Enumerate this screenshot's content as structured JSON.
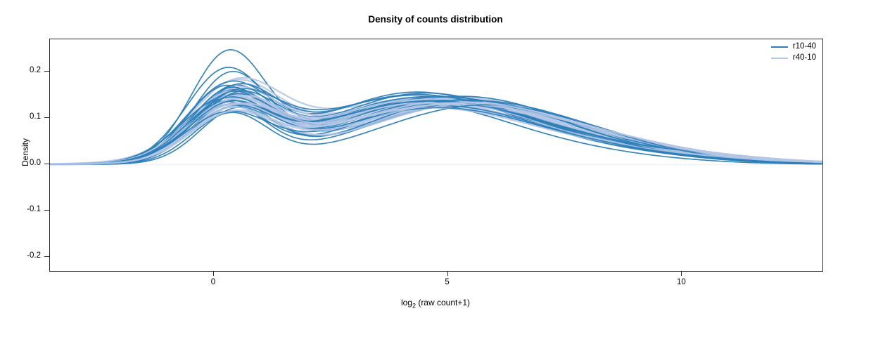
{
  "chart_data": {
    "type": "line",
    "title": "Density of counts distribution",
    "ylabel": "Density",
    "xlabel": {
      "prefix": "log",
      "sub": "2",
      "suffix": " (raw count+1)"
    },
    "xlim": [
      -3.5,
      13.0
    ],
    "ylim": [
      -0.23,
      0.27
    ],
    "xticks": [
      {
        "v": 0,
        "label": "0"
      },
      {
        "v": 5,
        "label": "5"
      },
      {
        "v": 10,
        "label": "10"
      }
    ],
    "yticks": [
      {
        "v": -0.2,
        "label": "-0.2"
      },
      {
        "v": -0.1,
        "label": "-0.1"
      },
      {
        "v": 0.0,
        "label": "0.0"
      },
      {
        "v": 0.1,
        "label": "0.1"
      },
      {
        "v": 0.2,
        "label": "0.2"
      }
    ],
    "grid": false,
    "legend_position": "top-right",
    "legend": [
      {
        "label": "r10-40",
        "color": "#2c7fb8"
      },
      {
        "label": "r40-10",
        "color": "#b3c6e5"
      }
    ],
    "baseline_color": "#ececec",
    "series_model": "each curve = sum of 3 gaussian components [mu, sd, amplitude], density vs log2(raw count+1)",
    "series": [
      {
        "g": 0,
        "p": [
          [
            0.3,
            0.8,
            0.225
          ],
          [
            4.0,
            2.0,
            0.12
          ],
          [
            7.0,
            2.2,
            0.03
          ]
        ]
      },
      {
        "g": 1,
        "p": [
          [
            0.4,
            0.95,
            0.15
          ],
          [
            4.5,
            2.4,
            0.135
          ],
          [
            8.5,
            2.5,
            0.03
          ]
        ]
      },
      {
        "g": 0,
        "p": [
          [
            0.25,
            0.85,
            0.19
          ],
          [
            4.3,
            2.1,
            0.12
          ],
          [
            7.5,
            2.4,
            0.03
          ]
        ]
      },
      {
        "g": 1,
        "p": [
          [
            0.35,
            0.9,
            0.145
          ],
          [
            5.0,
            2.3,
            0.14
          ],
          [
            9.0,
            2.3,
            0.025
          ]
        ]
      },
      {
        "g": 0,
        "p": [
          [
            0.35,
            0.8,
            0.18
          ],
          [
            4.6,
            2.2,
            0.13
          ],
          [
            8.0,
            2.2,
            0.025
          ]
        ]
      },
      {
        "g": 1,
        "p": [
          [
            0.45,
            0.95,
            0.142
          ],
          [
            4.2,
            2.5,
            0.13
          ],
          [
            8.0,
            2.6,
            0.035
          ]
        ]
      },
      {
        "g": 0,
        "p": [
          [
            0.3,
            0.9,
            0.155
          ],
          [
            4.1,
            2.0,
            0.14
          ],
          [
            7.2,
            2.4,
            0.035
          ]
        ]
      },
      {
        "g": 1,
        "p": [
          [
            0.3,
            0.9,
            0.14
          ],
          [
            4.8,
            2.2,
            0.145
          ],
          [
            9.5,
            2.0,
            0.02
          ]
        ]
      },
      {
        "g": 0,
        "p": [
          [
            0.4,
            0.85,
            0.15
          ],
          [
            4.8,
            2.3,
            0.13
          ],
          [
            8.5,
            2.0,
            0.02
          ]
        ]
      },
      {
        "g": 1,
        "p": [
          [
            0.5,
            0.85,
            0.138
          ],
          [
            4.4,
            2.4,
            0.13
          ],
          [
            8.2,
            2.4,
            0.03
          ]
        ]
      },
      {
        "g": 0,
        "p": [
          [
            0.2,
            0.8,
            0.148
          ],
          [
            4.4,
            2.2,
            0.135
          ],
          [
            7.8,
            2.3,
            0.03
          ]
        ]
      },
      {
        "g": 1,
        "p": [
          [
            0.35,
            0.95,
            0.135
          ],
          [
            5.3,
            2.3,
            0.135
          ],
          [
            9.2,
            2.2,
            0.02
          ]
        ]
      },
      {
        "g": 0,
        "p": [
          [
            0.35,
            0.9,
            0.145
          ],
          [
            5.2,
            2.4,
            0.12
          ],
          [
            8.2,
            2.1,
            0.025
          ]
        ]
      },
      {
        "g": 1,
        "p": [
          [
            0.4,
            0.9,
            0.132
          ],
          [
            4.6,
            2.5,
            0.14
          ],
          [
            8.7,
            2.3,
            0.025
          ]
        ]
      },
      {
        "g": 0,
        "p": [
          [
            0.45,
            0.85,
            0.14
          ],
          [
            4.0,
            2.1,
            0.13
          ],
          [
            7.0,
            2.5,
            0.04
          ]
        ]
      },
      {
        "g": 1,
        "p": [
          [
            0.3,
            0.85,
            0.13
          ],
          [
            4.3,
            2.3,
            0.125
          ],
          [
            8.0,
            2.5,
            0.035
          ]
        ]
      },
      {
        "g": 0,
        "p": [
          [
            0.3,
            0.8,
            0.138
          ],
          [
            4.5,
            2.3,
            0.145
          ],
          [
            8.8,
            1.9,
            0.015
          ]
        ]
      },
      {
        "g": 1,
        "p": [
          [
            0.45,
            0.95,
            0.128
          ],
          [
            5.1,
            2.2,
            0.13
          ],
          [
            9.4,
            2.1,
            0.02
          ]
        ]
      },
      {
        "g": 0,
        "p": [
          [
            0.25,
            0.95,
            0.135
          ],
          [
            5.0,
            2.2,
            0.13
          ],
          [
            7.5,
            2.2,
            0.03
          ]
        ]
      },
      {
        "g": 1,
        "p": [
          [
            0.35,
            0.9,
            0.126
          ],
          [
            4.7,
            2.4,
            0.135
          ],
          [
            8.4,
            2.4,
            0.025
          ]
        ]
      },
      {
        "g": 0,
        "p": [
          [
            0.5,
            0.85,
            0.132
          ],
          [
            4.2,
            2.0,
            0.125
          ],
          [
            6.8,
            2.6,
            0.045
          ]
        ]
      },
      {
        "g": 1,
        "p": [
          [
            0.5,
            0.85,
            0.124
          ],
          [
            4.5,
            2.3,
            0.12
          ],
          [
            8.9,
            2.2,
            0.03
          ]
        ]
      },
      {
        "g": 0,
        "p": [
          [
            0.35,
            0.8,
            0.13
          ],
          [
            4.7,
            2.4,
            0.14
          ],
          [
            8.0,
            2.0,
            0.02
          ]
        ]
      },
      {
        "g": 1,
        "p": [
          [
            0.4,
            0.95,
            0.122
          ],
          [
            5.4,
            2.4,
            0.13
          ],
          [
            9.6,
            2.0,
            0.015
          ]
        ]
      },
      {
        "g": 0,
        "p": [
          [
            0.3,
            0.9,
            0.128
          ],
          [
            5.5,
            2.3,
            0.135
          ],
          [
            9.0,
            1.8,
            0.015
          ]
        ]
      },
      {
        "g": 1,
        "p": [
          [
            0.3,
            0.9,
            0.12
          ],
          [
            4.2,
            2.2,
            0.13
          ],
          [
            8.1,
            2.5,
            0.03
          ]
        ]
      },
      {
        "g": 0,
        "p": [
          [
            0.4,
            0.85,
            0.126
          ],
          [
            4.3,
            2.2,
            0.12
          ],
          [
            7.3,
            2.3,
            0.035
          ]
        ]
      },
      {
        "g": 1,
        "p": [
          [
            0.45,
            0.85,
            0.118
          ],
          [
            4.9,
            2.5,
            0.125
          ],
          [
            8.6,
            2.3,
            0.025
          ]
        ]
      },
      {
        "g": 0,
        "p": [
          [
            0.2,
            0.85,
            0.125
          ],
          [
            4.9,
            2.1,
            0.13
          ],
          [
            8.4,
            2.1,
            0.02
          ]
        ]
      },
      {
        "g": 1,
        "p": [
          [
            0.35,
            0.95,
            0.116
          ],
          [
            4.6,
            2.3,
            0.135
          ],
          [
            9.1,
            2.1,
            0.02
          ]
        ]
      },
      {
        "g": 0,
        "p": [
          [
            0.45,
            0.9,
            0.122
          ],
          [
            4.1,
            2.3,
            0.135
          ],
          [
            7.1,
            2.4,
            0.03
          ]
        ]
      },
      {
        "g": 1,
        "p": [
          [
            0.4,
            0.9,
            0.114
          ],
          [
            5.2,
            2.2,
            0.12
          ],
          [
            8.3,
            2.4,
            0.03
          ]
        ]
      },
      {
        "g": 0,
        "p": [
          [
            0.3,
            0.8,
            0.12
          ],
          [
            5.3,
            2.2,
            0.125
          ],
          [
            8.6,
            2.0,
            0.02
          ]
        ]
      },
      {
        "g": 1,
        "p": [
          [
            0.5,
            0.85,
            0.112
          ],
          [
            4.4,
            2.4,
            0.13
          ],
          [
            9.3,
            2.2,
            0.02
          ]
        ]
      },
      {
        "g": 0,
        "p": [
          [
            0.35,
            0.95,
            0.118
          ],
          [
            4.6,
            2.0,
            0.12
          ],
          [
            7.6,
            2.5,
            0.035
          ]
        ]
      },
      {
        "g": 1,
        "p": [
          [
            0.3,
            0.95,
            0.11
          ],
          [
            4.8,
            2.3,
            0.125
          ],
          [
            8.5,
            2.5,
            0.03
          ]
        ]
      },
      {
        "g": 0,
        "p": [
          [
            0.25,
            0.85,
            0.115
          ],
          [
            4.4,
            2.4,
            0.13
          ],
          [
            8.1,
            2.2,
            0.025
          ]
        ]
      },
      {
        "g": 1,
        "p": [
          [
            0.45,
            0.9,
            0.108
          ],
          [
            5.0,
            2.4,
            0.12
          ],
          [
            8.8,
            2.1,
            0.025
          ]
        ]
      },
      {
        "g": 0,
        "p": [
          [
            0.5,
            0.8,
            0.112
          ],
          [
            5.1,
            2.1,
            0.12
          ],
          [
            7.4,
            2.3,
            0.03
          ]
        ]
      },
      {
        "g": 1,
        "p": [
          [
            0.35,
            0.85,
            0.106
          ],
          [
            4.3,
            2.2,
            0.125
          ],
          [
            8.2,
            2.3,
            0.03
          ]
        ]
      },
      {
        "g": 0,
        "p": [
          [
            0.4,
            0.9,
            0.11
          ],
          [
            4.8,
            2.2,
            0.125
          ],
          [
            8.9,
            1.9,
            0.015
          ]
        ]
      },
      {
        "g": 1,
        "p": [
          [
            0.4,
            0.95,
            0.104
          ],
          [
            5.5,
            2.3,
            0.13
          ],
          [
            9.5,
            2.0,
            0.015
          ]
        ]
      },
      {
        "g": 0,
        "p": [
          [
            0.3,
            0.85,
            0.108
          ],
          [
            4.2,
            2.3,
            0.115
          ],
          [
            7.0,
            2.4,
            0.04
          ]
        ]
      },
      {
        "g": 1,
        "p": [
          [
            0.5,
            0.9,
            0.102
          ],
          [
            4.7,
            2.5,
            0.115
          ],
          [
            8.0,
            2.4,
            0.035
          ]
        ]
      },
      {
        "g": 0,
        "p": [
          [
            0.35,
            0.8,
            0.105
          ],
          [
            5.6,
            2.2,
            0.12
          ],
          [
            8.3,
            2.0,
            0.02
          ]
        ]
      },
      {
        "g": 1,
        "p": [
          [
            0.3,
            0.85,
            0.1
          ],
          [
            4.5,
            2.3,
            0.12
          ],
          [
            9.0,
            2.2,
            0.02
          ]
        ]
      },
      {
        "g": 0,
        "p": [
          [
            0.25,
            0.9,
            0.1
          ],
          [
            4.5,
            2.1,
            0.11
          ],
          [
            7.7,
            2.3,
            0.03
          ]
        ]
      },
      {
        "g": 1,
        "p": [
          [
            0.4,
            0.9,
            0.098
          ],
          [
            5.1,
            2.4,
            0.125
          ],
          [
            8.6,
            2.3,
            0.025
          ]
        ]
      }
    ]
  }
}
